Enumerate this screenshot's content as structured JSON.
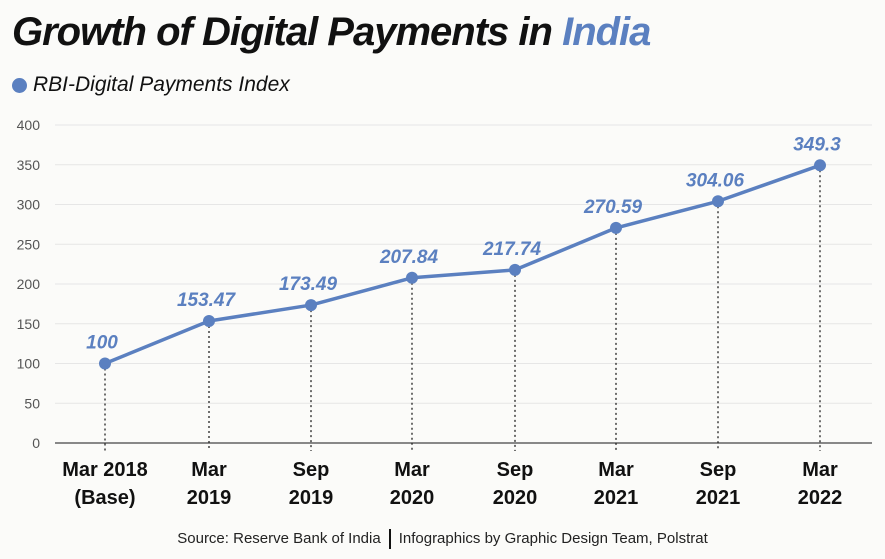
{
  "title": {
    "main": "Growth of Digital Payments in",
    "highlight": "India"
  },
  "colors": {
    "series": "#5b80c0",
    "grid": "#e6e6e6",
    "text": "#111111"
  },
  "chart_data": {
    "type": "line",
    "title": "Growth of Digital Payments in India",
    "categories": [
      [
        "Mar 2018",
        "(Base)"
      ],
      [
        "Mar",
        "2019"
      ],
      [
        "Sep",
        "2019"
      ],
      [
        "Mar",
        "2020"
      ],
      [
        "Sep",
        "2020"
      ],
      [
        "Mar",
        "2021"
      ],
      [
        "Sep",
        "2021"
      ],
      [
        "Mar",
        "2022"
      ]
    ],
    "series": [
      {
        "name": "RBI-Digital Payments Index",
        "values": [
          100,
          153.47,
          173.49,
          207.84,
          217.74,
          270.59,
          304.06,
          349.3
        ]
      }
    ],
    "data_labels": [
      "100",
      "153.47",
      "173.49",
      "207.84",
      "217.74",
      "270.59",
      "304.06",
      "349.3"
    ],
    "yticks": [
      0,
      50,
      100,
      150,
      200,
      250,
      300,
      350,
      400
    ],
    "ylim": [
      0,
      400
    ],
    "grid": true,
    "legend": "top-left",
    "xlabel": "",
    "ylabel": ""
  },
  "footer": {
    "source": "Source: Reserve Bank of India",
    "credit": "Infographics by Graphic Design Team, Polstrat"
  }
}
